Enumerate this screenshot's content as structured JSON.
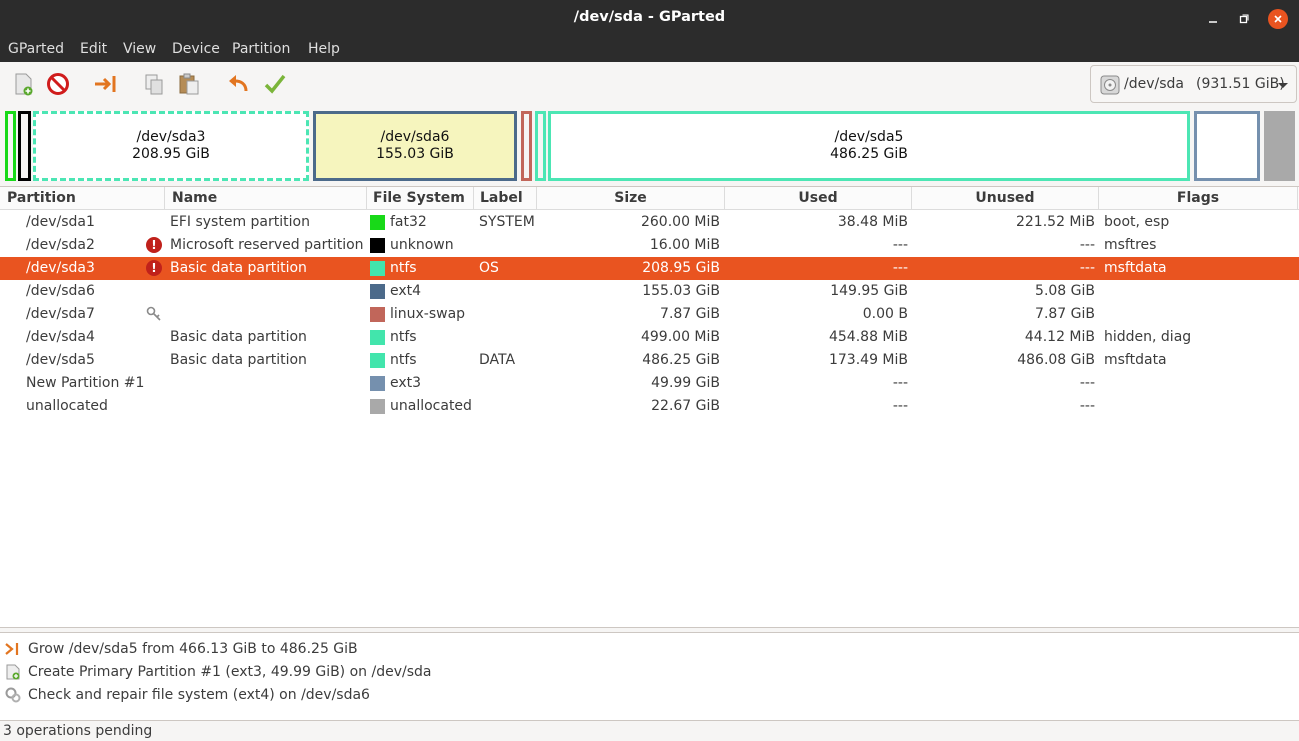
{
  "window": {
    "title": "/dev/sda - GParted"
  },
  "menu": [
    "GParted",
    "Edit",
    "View",
    "Device",
    "Partition",
    "Help"
  ],
  "toolbar": {
    "icons": [
      "new-partition-icon",
      "delete-icon",
      "resize-move-icon",
      "copy-icon",
      "paste-icon",
      "undo-icon",
      "apply-icon"
    ]
  },
  "device": {
    "name": "/dev/sda",
    "size": "(931.51 GiB)"
  },
  "diskmap": [
    {
      "name": "/dev/sda3",
      "size": "208.95 GiB",
      "color": "#4ce6b4"
    },
    {
      "name": "/dev/sda6",
      "size": "155.03 GiB",
      "color": "#4c6a8a"
    },
    {
      "name": "/dev/sda5",
      "size": "486.25 GiB",
      "color": "#4ce6b4"
    }
  ],
  "columns": [
    "Partition",
    "Name",
    "File System",
    "Label",
    "Size",
    "Used",
    "Unused",
    "Flags"
  ],
  "rows": [
    {
      "partition": "/dev/sda1",
      "name": "EFI system partition",
      "fs": "fat32",
      "fs_color": "#18d918",
      "label": "SYSTEM",
      "size": "260.00 MiB",
      "used": "38.48 MiB",
      "unused": "221.52 MiB",
      "flags": "boot, esp",
      "icon": "",
      "selected": false
    },
    {
      "partition": "/dev/sda2",
      "name": "Microsoft reserved partition",
      "fs": "unknown",
      "fs_color": "#000000",
      "label": "",
      "size": "16.00 MiB",
      "used": "---",
      "unused": "---",
      "flags": "msftres",
      "icon": "warning",
      "selected": false
    },
    {
      "partition": "/dev/sda3",
      "name": "Basic data partition",
      "fs": "ntfs",
      "fs_color": "#42e5ac",
      "label": "OS",
      "size": "208.95 GiB",
      "used": "---",
      "unused": "---",
      "flags": "msftdata",
      "icon": "warning",
      "selected": true
    },
    {
      "partition": "/dev/sda6",
      "name": "",
      "fs": "ext4",
      "fs_color": "#4c6a8a",
      "label": "",
      "size": "155.03 GiB",
      "used": "149.95 GiB",
      "unused": "5.08 GiB",
      "flags": "",
      "icon": "",
      "selected": false
    },
    {
      "partition": "/dev/sda7",
      "name": "",
      "fs": "linux-swap",
      "fs_color": "#c1665a",
      "label": "",
      "size": "7.87 GiB",
      "used": "0.00 B",
      "unused": "7.87 GiB",
      "flags": "",
      "icon": "key",
      "selected": false
    },
    {
      "partition": "/dev/sda4",
      "name": "Basic data partition",
      "fs": "ntfs",
      "fs_color": "#42e5ac",
      "label": "",
      "size": "499.00 MiB",
      "used": "454.88 MiB",
      "unused": "44.12 MiB",
      "flags": "hidden, diag",
      "icon": "",
      "selected": false
    },
    {
      "partition": "/dev/sda5",
      "name": "Basic data partition",
      "fs": "ntfs",
      "fs_color": "#42e5ac",
      "label": "DATA",
      "size": "486.25 GiB",
      "used": "173.49 MiB",
      "unused": "486.08 GiB",
      "flags": "msftdata",
      "icon": "",
      "selected": false
    },
    {
      "partition": "New Partition #1",
      "name": "",
      "fs": "ext3",
      "fs_color": "#7590ae",
      "label": "",
      "size": "49.99 GiB",
      "used": "---",
      "unused": "---",
      "flags": "",
      "icon": "",
      "selected": false
    },
    {
      "partition": "unallocated",
      "name": "",
      "fs": "unallocated",
      "fs_color": "#a9a9a9",
      "label": "",
      "size": "22.67 GiB",
      "used": "---",
      "unused": "---",
      "flags": "",
      "icon": "",
      "selected": false
    }
  ],
  "operations": [
    {
      "text": "Grow /dev/sda5 from 466.13 GiB to 486.25 GiB",
      "icon": "resize-icon"
    },
    {
      "text": "Create Primary Partition #1 (ext3, 49.99 GiB) on /dev/sda",
      "icon": "new-partition-icon"
    },
    {
      "text": "Check and repair file system (ext4) on /dev/sda6",
      "icon": "check-repair-icon"
    }
  ],
  "status": "3 operations pending"
}
